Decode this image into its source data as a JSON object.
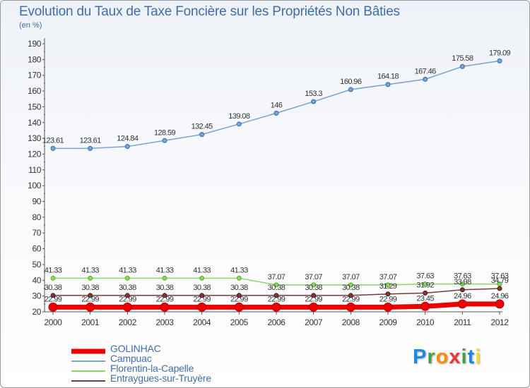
{
  "title": "Evolution du Taux de Taxe Foncière sur les Propriétés Non Bâties",
  "unit_label": "(en %)",
  "chart_data": {
    "type": "line",
    "title": "Evolution du Taux de Taxe Foncière sur les Propriétés Non Bâties",
    "ylabel": "(en %)",
    "xlabel": "",
    "x": [
      2000,
      2001,
      2002,
      2003,
      2004,
      2005,
      2006,
      2007,
      2008,
      2009,
      2010,
      2011,
      2012
    ],
    "ylim": [
      20,
      190
    ],
    "yticks": [
      20,
      30,
      40,
      50,
      60,
      70,
      80,
      90,
      100,
      110,
      120,
      130,
      140,
      150,
      160,
      170,
      180,
      190
    ],
    "grid": false,
    "legend": "bottom-left",
    "series": [
      {
        "name": "GOLINHAC",
        "color": "#ee0000",
        "labels": false,
        "values": [
          22.99,
          22.99,
          22.99,
          22.99,
          22.99,
          22.99,
          22.99,
          22.99,
          22.99,
          22.99,
          23.45,
          24.96,
          24.96
        ]
      },
      {
        "name": "Campuac",
        "color": "#7aa3cf",
        "labels": true,
        "values": [
          123.61,
          123.61,
          124.84,
          128.59,
          132.45,
          139.08,
          146,
          153.3,
          160.96,
          164.18,
          167.46,
          175.58,
          179.09
        ]
      },
      {
        "name": "Florentin-la-Capelle",
        "color": "#88d85c",
        "labels": true,
        "values": [
          41.33,
          41.33,
          41.33,
          41.33,
          41.33,
          41.33,
          37.07,
          37.07,
          37.07,
          37.07,
          37.63,
          37.63,
          37.63
        ]
      },
      {
        "name": "Entraygues-sur-Truyère",
        "color": "#7a3a3a",
        "labels": true,
        "values": [
          30.38,
          30.38,
          30.38,
          30.38,
          30.38,
          30.38,
          30.38,
          30.38,
          30.38,
          31.29,
          31.92,
          33.98,
          34.79
        ]
      }
    ],
    "overlay_labels": [
      {
        "value": 22.99,
        "x": [
          2000,
          2001,
          2002,
          2003,
          2004,
          2005,
          2006,
          2007,
          2008,
          2009
        ]
      },
      {
        "value": 23.45,
        "x": [
          2010
        ]
      },
      {
        "value": 24.96,
        "x": [
          2011,
          2012
        ]
      }
    ]
  },
  "logo": {
    "text": "Proxiti",
    "letters": [
      "P",
      "r",
      "o",
      "x",
      "i",
      "t",
      "i"
    ],
    "colors": [
      "#1e88e5",
      "#43a047",
      "#fb8c00",
      "#e53935",
      "#43a047",
      "#1e88e5",
      "#fdd835"
    ]
  }
}
